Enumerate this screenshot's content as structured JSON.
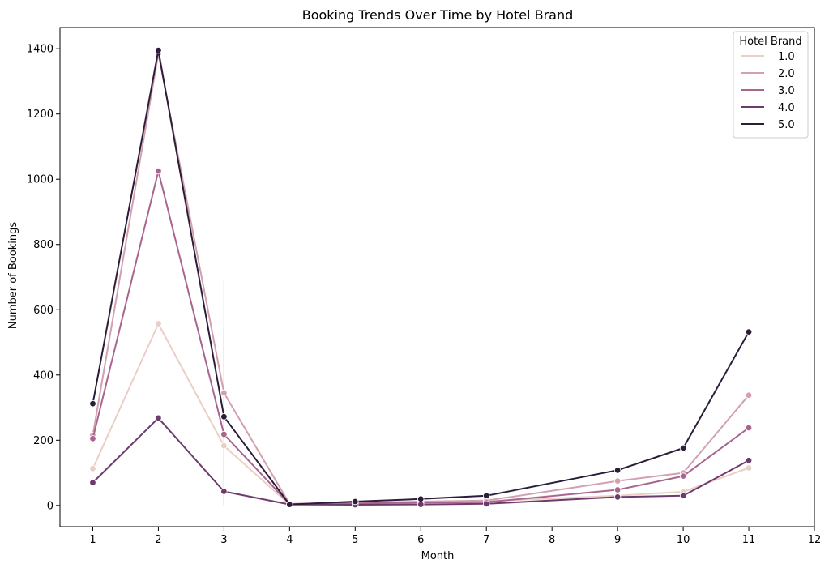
{
  "chart_data": {
    "type": "line",
    "title": "Booking Trends Over Time by Hotel Brand",
    "xlabel": "Month",
    "ylabel": "Number of Bookings",
    "xlim": [
      0.5,
      12
    ],
    "ylim": [
      -65,
      1465
    ],
    "xticks": [
      1,
      2,
      3,
      4,
      5,
      6,
      7,
      8,
      9,
      10,
      11,
      12
    ],
    "yticks": [
      0,
      200,
      400,
      600,
      800,
      1000,
      1200,
      1400
    ],
    "grid": false,
    "legend": {
      "title": "Hotel Brand",
      "placement": "top-right"
    },
    "series": [
      {
        "name": "1.0",
        "color": "#ebcec6",
        "x": [
          1,
          2,
          3,
          4,
          5,
          6,
          7,
          9,
          10,
          11
        ],
        "y": [
          113,
          557,
          183,
          3,
          5,
          10,
          13,
          30,
          42,
          115
        ]
      },
      {
        "name": "2.0",
        "color": "#d3a0b0",
        "x": [
          1,
          2,
          3,
          4,
          5,
          6,
          7,
          9,
          10,
          11
        ],
        "y": [
          215,
          1385,
          345,
          5,
          8,
          12,
          15,
          75,
          100,
          338
        ]
      },
      {
        "name": "3.0",
        "color": "#a8668f",
        "x": [
          1,
          2,
          3,
          4,
          5,
          6,
          7,
          9,
          10,
          11
        ],
        "y": [
          205,
          1025,
          218,
          4,
          6,
          9,
          10,
          48,
          90,
          238
        ]
      },
      {
        "name": "4.0",
        "color": "#6d3a6c",
        "x": [
          1,
          2,
          3,
          4,
          5,
          6,
          7,
          9,
          10,
          11
        ],
        "y": [
          70,
          268,
          43,
          3,
          2,
          3,
          5,
          26,
          30,
          138
        ]
      },
      {
        "name": "5.0",
        "color": "#2c1d3a",
        "x": [
          1,
          2,
          3,
          4,
          5,
          6,
          7,
          9,
          10,
          11
        ],
        "y": [
          312,
          1395,
          272,
          3,
          12,
          20,
          30,
          108,
          176,
          532
        ]
      }
    ],
    "error_bars": [
      {
        "x": 3,
        "low": 0,
        "high": 690,
        "color": "#ebcec6"
      },
      {
        "x": 3,
        "low": 0,
        "high": 540,
        "color": "#c5c0c8"
      }
    ]
  }
}
